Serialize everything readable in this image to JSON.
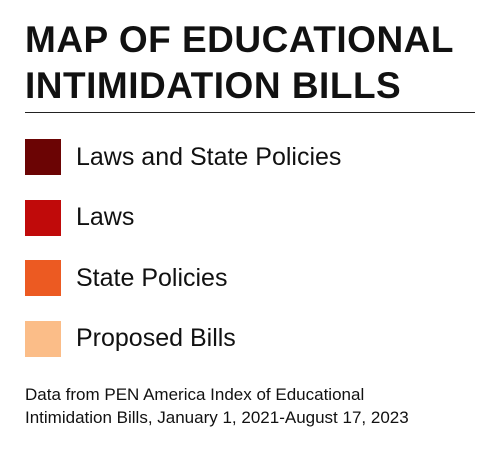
{
  "title_lines": [
    "MAP OF EDUCATIONAL",
    "INTIMIDATION BILLS"
  ],
  "legend": [
    {
      "label": "Laws and State Policies",
      "color": "#6b0404"
    },
    {
      "label": "Laws",
      "color": "#c00a0a"
    },
    {
      "label": "State Policies",
      "color": "#ec5a22"
    },
    {
      "label": "Proposed Bills",
      "color": "#fbbd88"
    }
  ],
  "source_lines": [
    "Data from PEN America Index of Educational",
    "Intimidation Bills, January 1, 2021-August 17, 2023"
  ]
}
